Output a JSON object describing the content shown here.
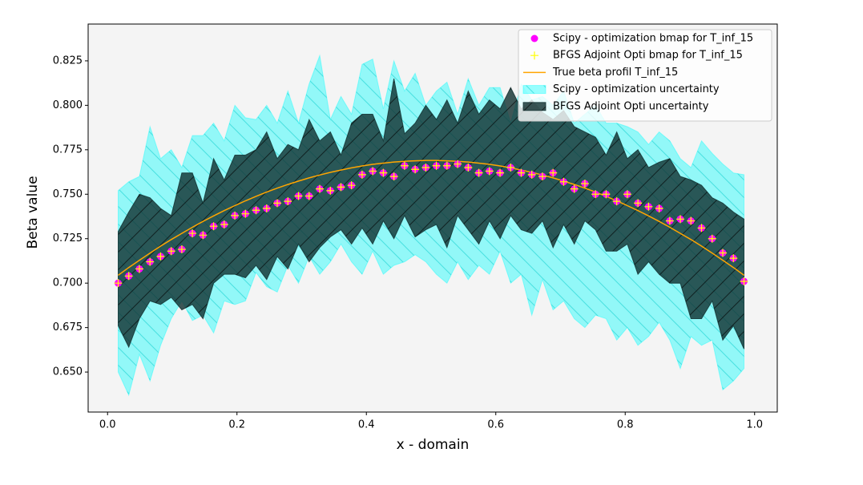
{
  "chart_data": {
    "type": "line",
    "xlabel": "x - domain",
    "ylabel": "Beta value",
    "xlim": [
      -0.03,
      1.035
    ],
    "ylim": [
      0.6275,
      0.8457
    ],
    "xticks": [
      {
        "value": 0,
        "label": "0.0"
      },
      0.2,
      0.4,
      0.6,
      0.8,
      {
        "value": 1,
        "label": "1.0"
      }
    ],
    "yticks": [
      {
        "value": 0.65,
        "label": "0.650"
      },
      0.675,
      {
        "value": 0.7,
        "label": "0.700"
      },
      0.725,
      {
        "value": 0.75,
        "label": "0.750"
      },
      0.775,
      {
        "value": 0.8,
        "label": "0.800"
      },
      0.825
    ],
    "legend": "upper right",
    "background": "#f4f4f4",
    "x": [
      0.0164,
      0.0328,
      0.0492,
      0.0656,
      0.082,
      0.0984,
      0.1148,
      0.1311,
      0.1475,
      0.1639,
      0.1803,
      0.1967,
      0.2131,
      0.2295,
      0.2459,
      0.2623,
      0.2787,
      0.2951,
      0.3115,
      0.3279,
      0.3443,
      0.3607,
      0.377,
      0.3934,
      0.4098,
      0.4262,
      0.4426,
      0.459,
      0.4754,
      0.4918,
      0.5082,
      0.5246,
      0.541,
      0.5574,
      0.5738,
      0.5902,
      0.6066,
      0.623,
      0.6393,
      0.6557,
      0.6721,
      0.6885,
      0.7049,
      0.7213,
      0.7377,
      0.7541,
      0.7705,
      0.7869,
      0.8033,
      0.8197,
      0.8361,
      0.8525,
      0.8689,
      0.8852,
      0.9016,
      0.918,
      0.9344,
      0.9508,
      0.9672,
      0.9836
    ],
    "series": [
      {
        "name": "Scipy - optimization bmap for T_inf_15",
        "type": "scatter",
        "marker": "o",
        "color": "#ff00ff",
        "values": [
          0.7,
          0.704,
          0.708,
          0.712,
          0.715,
          0.718,
          0.719,
          0.728,
          0.727,
          0.732,
          0.733,
          0.738,
          0.739,
          0.741,
          0.742,
          0.745,
          0.746,
          0.749,
          0.749,
          0.753,
          0.752,
          0.754,
          0.755,
          0.761,
          0.763,
          0.762,
          0.76,
          0.766,
          0.764,
          0.765,
          0.766,
          0.766,
          0.767,
          0.765,
          0.762,
          0.763,
          0.762,
          0.765,
          0.762,
          0.761,
          0.76,
          0.762,
          0.757,
          0.753,
          0.756,
          0.75,
          0.75,
          0.746,
          0.75,
          0.745,
          0.743,
          0.742,
          0.735,
          0.736,
          0.735,
          0.731,
          0.725,
          0.717,
          0.714,
          0.701
        ]
      },
      {
        "name": "BFGS Adjoint Opti bmap for T_inf_15",
        "type": "scatter",
        "marker": "+",
        "color": "#ffff00",
        "values": [
          0.7,
          0.704,
          0.708,
          0.712,
          0.715,
          0.718,
          0.719,
          0.728,
          0.727,
          0.732,
          0.733,
          0.738,
          0.739,
          0.741,
          0.742,
          0.745,
          0.746,
          0.749,
          0.749,
          0.753,
          0.752,
          0.754,
          0.755,
          0.761,
          0.763,
          0.762,
          0.76,
          0.766,
          0.764,
          0.765,
          0.766,
          0.766,
          0.767,
          0.765,
          0.762,
          0.763,
          0.762,
          0.765,
          0.762,
          0.761,
          0.76,
          0.762,
          0.757,
          0.753,
          0.756,
          0.75,
          0.75,
          0.746,
          0.75,
          0.745,
          0.743,
          0.742,
          0.735,
          0.736,
          0.735,
          0.731,
          0.725,
          0.717,
          0.714,
          0.701
        ]
      },
      {
        "name": "True beta profil T_inf_15",
        "type": "line",
        "color": "#ffa500",
        "values": [
          0.7044,
          0.7088,
          0.7129,
          0.7169,
          0.7208,
          0.7245,
          0.728,
          0.7314,
          0.7347,
          0.7378,
          0.7408,
          0.7436,
          0.7463,
          0.7488,
          0.7512,
          0.7534,
          0.7555,
          0.7574,
          0.7592,
          0.7608,
          0.7623,
          0.7636,
          0.7648,
          0.7659,
          0.7668,
          0.7675,
          0.7681,
          0.7685,
          0.7688,
          0.769,
          0.769,
          0.7688,
          0.7685,
          0.7681,
          0.7675,
          0.7668,
          0.7659,
          0.7648,
          0.7636,
          0.7623,
          0.7608,
          0.7592,
          0.7574,
          0.7555,
          0.7534,
          0.7512,
          0.7488,
          0.7463,
          0.7436,
          0.7408,
          0.7378,
          0.7347,
          0.7314,
          0.728,
          0.7245,
          0.7208,
          0.7169,
          0.7129,
          0.7088,
          0.7044
        ]
      },
      {
        "name": "Scipy - optimization uncertainty",
        "type": "band",
        "color": "#00ffff",
        "opacity": 0.4,
        "hatch": "\\",
        "values": [
          0.752,
          0.757,
          0.76,
          0.788,
          0.77,
          0.775,
          0.765,
          0.783,
          0.783,
          0.79,
          0.78,
          0.8,
          0.793,
          0.792,
          0.8,
          0.79,
          0.808,
          0.79,
          0.812,
          0.828,
          0.792,
          0.805,
          0.795,
          0.823,
          0.826,
          0.798,
          0.825,
          0.808,
          0.818,
          0.8,
          0.808,
          0.813,
          0.795,
          0.815,
          0.8,
          0.81,
          0.81,
          0.79,
          0.812,
          0.803,
          0.805,
          0.8,
          0.808,
          0.79,
          0.795,
          0.8,
          0.79,
          0.79,
          0.788,
          0.785,
          0.778,
          0.785,
          0.78,
          0.77,
          0.765,
          0.78,
          0.773,
          0.767,
          0.762,
          0.761
        ],
        "lower": [
          0.65,
          0.637,
          0.66,
          0.645,
          0.665,
          0.68,
          0.69,
          0.679,
          0.682,
          0.672,
          0.69,
          0.688,
          0.69,
          0.706,
          0.698,
          0.695,
          0.71,
          0.7,
          0.715,
          0.705,
          0.712,
          0.722,
          0.712,
          0.705,
          0.718,
          0.705,
          0.71,
          0.712,
          0.716,
          0.712,
          0.705,
          0.7,
          0.712,
          0.702,
          0.71,
          0.705,
          0.718,
          0.7,
          0.705,
          0.682,
          0.702,
          0.685,
          0.69,
          0.68,
          0.675,
          0.682,
          0.68,
          0.668,
          0.675,
          0.665,
          0.67,
          0.678,
          0.668,
          0.652,
          0.67,
          0.665,
          0.668,
          0.64,
          0.645,
          0.652
        ]
      },
      {
        "name": "BFGS Adjoint Opti uncertainty",
        "type": "band",
        "color": "#0f2e2e",
        "opacity": 0.8,
        "hatch": "/",
        "values": [
          0.729,
          0.74,
          0.75,
          0.748,
          0.742,
          0.738,
          0.762,
          0.762,
          0.745,
          0.77,
          0.758,
          0.772,
          0.772,
          0.775,
          0.785,
          0.77,
          0.778,
          0.775,
          0.792,
          0.78,
          0.785,
          0.772,
          0.79,
          0.795,
          0.795,
          0.78,
          0.815,
          0.784,
          0.79,
          0.8,
          0.792,
          0.803,
          0.79,
          0.808,
          0.795,
          0.803,
          0.798,
          0.81,
          0.798,
          0.803,
          0.796,
          0.792,
          0.797,
          0.788,
          0.785,
          0.782,
          0.772,
          0.785,
          0.77,
          0.775,
          0.765,
          0.768,
          0.77,
          0.76,
          0.758,
          0.755,
          0.748,
          0.745,
          0.74,
          0.736
        ],
        "lower": [
          0.676,
          0.664,
          0.68,
          0.69,
          0.688,
          0.692,
          0.685,
          0.688,
          0.68,
          0.7,
          0.705,
          0.705,
          0.703,
          0.71,
          0.702,
          0.715,
          0.708,
          0.722,
          0.712,
          0.72,
          0.726,
          0.73,
          0.722,
          0.731,
          0.722,
          0.735,
          0.725,
          0.738,
          0.726,
          0.73,
          0.733,
          0.72,
          0.738,
          0.73,
          0.722,
          0.735,
          0.725,
          0.738,
          0.73,
          0.728,
          0.735,
          0.72,
          0.733,
          0.722,
          0.735,
          0.73,
          0.718,
          0.718,
          0.722,
          0.705,
          0.712,
          0.705,
          0.7,
          0.7,
          0.68,
          0.68,
          0.69,
          0.668,
          0.676,
          0.663
        ]
      }
    ]
  }
}
